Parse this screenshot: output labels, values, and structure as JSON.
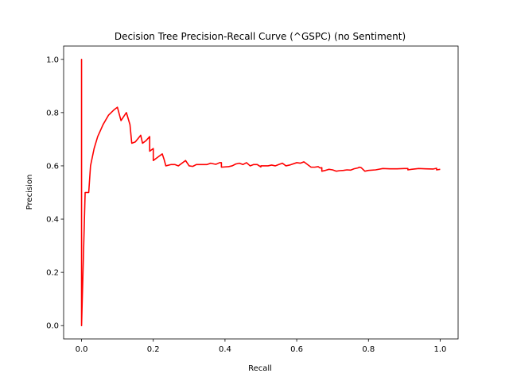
{
  "chart_data": {
    "type": "line",
    "title": "Decision Tree Precision-Recall Curve (^GSPC) (no Sentiment)",
    "xlabel": "Recall",
    "ylabel": "Precision",
    "xlim": [
      -0.05,
      1.05
    ],
    "ylim": [
      -0.05,
      1.05
    ],
    "xticks": [
      0.0,
      0.2,
      0.4,
      0.6,
      0.8,
      1.0
    ],
    "xtick_labels": [
      "0.0",
      "0.2",
      "0.4",
      "0.6",
      "0.8",
      "1.0"
    ],
    "yticks": [
      0.0,
      0.2,
      0.4,
      0.6,
      0.8,
      1.0
    ],
    "ytick_labels": [
      "0.0",
      "0.2",
      "0.4",
      "0.6",
      "0.8",
      "1.0"
    ],
    "grid": false,
    "series": [
      {
        "color": "#ff0000",
        "x": [
          0.0,
          0.0,
          0.0,
          0.01,
          0.02,
          0.025,
          0.035,
          0.045,
          0.06,
          0.075,
          0.09,
          0.1,
          0.11,
          0.125,
          0.135,
          0.14,
          0.15,
          0.165,
          0.17,
          0.18,
          0.19,
          0.19,
          0.2,
          0.2,
          0.21,
          0.225,
          0.23,
          0.235,
          0.25,
          0.26,
          0.27,
          0.29,
          0.3,
          0.31,
          0.32,
          0.33,
          0.35,
          0.36,
          0.37,
          0.375,
          0.385,
          0.39,
          0.39,
          0.41,
          0.42,
          0.43,
          0.44,
          0.45,
          0.46,
          0.47,
          0.48,
          0.49,
          0.5,
          0.5,
          0.52,
          0.53,
          0.54,
          0.55,
          0.56,
          0.57,
          0.58,
          0.6,
          0.61,
          0.62,
          0.63,
          0.64,
          0.65,
          0.66,
          0.665,
          0.67,
          0.67,
          0.68,
          0.69,
          0.7,
          0.71,
          0.72,
          0.73,
          0.74,
          0.75,
          0.76,
          0.77,
          0.775,
          0.78,
          0.79,
          0.8,
          0.82,
          0.84,
          0.86,
          0.88,
          0.9,
          0.91,
          0.91,
          0.92,
          0.94,
          0.96,
          0.98,
          0.99,
          0.99,
          1.0
        ],
        "y": [
          0.0,
          1.0,
          0.0,
          0.5,
          0.5,
          0.6,
          0.665,
          0.71,
          0.755,
          0.79,
          0.81,
          0.82,
          0.77,
          0.8,
          0.755,
          0.685,
          0.69,
          0.715,
          0.685,
          0.695,
          0.71,
          0.655,
          0.665,
          0.62,
          0.63,
          0.645,
          0.625,
          0.6,
          0.605,
          0.605,
          0.6,
          0.62,
          0.6,
          0.598,
          0.605,
          0.605,
          0.605,
          0.61,
          0.607,
          0.606,
          0.612,
          0.612,
          0.595,
          0.597,
          0.6,
          0.607,
          0.61,
          0.605,
          0.612,
          0.6,
          0.605,
          0.605,
          0.596,
          0.6,
          0.6,
          0.603,
          0.6,
          0.605,
          0.61,
          0.6,
          0.603,
          0.612,
          0.61,
          0.615,
          0.605,
          0.595,
          0.595,
          0.597,
          0.592,
          0.593,
          0.58,
          0.583,
          0.587,
          0.585,
          0.58,
          0.582,
          0.583,
          0.585,
          0.584,
          0.589,
          0.592,
          0.595,
          0.593,
          0.58,
          0.583,
          0.585,
          0.59,
          0.589,
          0.589,
          0.59,
          0.59,
          0.585,
          0.587,
          0.59,
          0.589,
          0.588,
          0.591,
          0.585,
          0.587
        ]
      }
    ]
  }
}
